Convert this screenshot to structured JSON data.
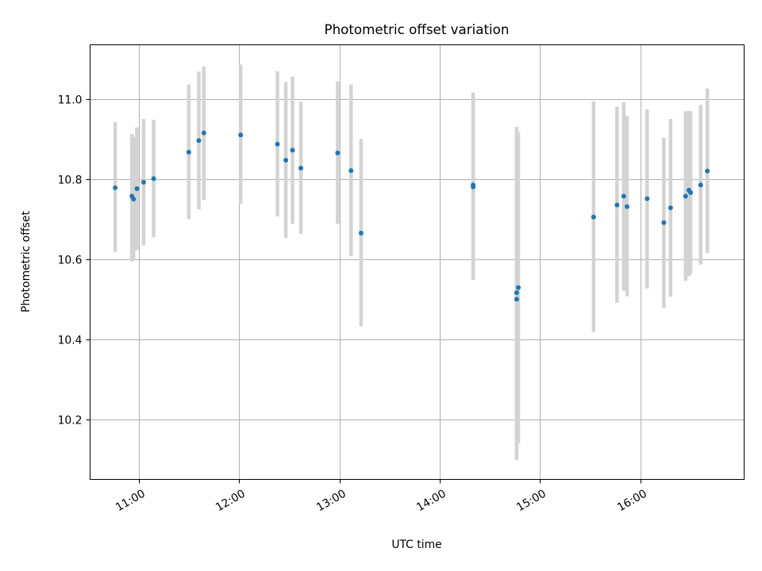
{
  "chart_data": {
    "type": "scatter",
    "title": "Photometric offset variation",
    "xlabel": "UTC time",
    "ylabel": "Photometric offset",
    "xlim": [
      "10:31",
      "17:02"
    ],
    "ylim": [
      10.05,
      11.135
    ],
    "grid": true,
    "x_ticks": [
      "11:00",
      "12:00",
      "13:00",
      "14:00",
      "15:00",
      "16:00"
    ],
    "y_ticks": [
      "10.2",
      "10.4",
      "10.6",
      "10.8",
      "11.0"
    ],
    "colors": {
      "point": "#1f77b4",
      "errorbar": "#d3d3d3",
      "grid": "#b0b0b0"
    },
    "series": [
      {
        "points": [
          {
            "x": "10:46",
            "y": 10.778,
            "ylo": 10.618,
            "yhi": 10.942
          },
          {
            "x": "10:56",
            "y": 10.757,
            "ylo": 10.594,
            "yhi": 10.912
          },
          {
            "x": "10:57",
            "y": 10.75,
            "ylo": 10.6,
            "yhi": 10.905
          },
          {
            "x": "10:59",
            "y": 10.776,
            "ylo": 10.622,
            "yhi": 10.929
          },
          {
            "x": "11:03",
            "y": 10.792,
            "ylo": 10.634,
            "yhi": 10.95
          },
          {
            "x": "11:09",
            "y": 10.801,
            "ylo": 10.654,
            "yhi": 10.948
          },
          {
            "x": "11:30",
            "y": 10.867,
            "ylo": 10.7,
            "yhi": 11.036
          },
          {
            "x": "11:36",
            "y": 10.896,
            "ylo": 10.724,
            "yhi": 11.068
          },
          {
            "x": "11:39",
            "y": 10.915,
            "ylo": 10.748,
            "yhi": 11.081
          },
          {
            "x": "12:01",
            "y": 10.91,
            "ylo": 10.738,
            "yhi": 11.086
          },
          {
            "x": "12:23",
            "y": 10.887,
            "ylo": 10.706,
            "yhi": 11.069
          },
          {
            "x": "12:28",
            "y": 10.847,
            "ylo": 10.653,
            "yhi": 11.042
          },
          {
            "x": "12:32",
            "y": 10.872,
            "ylo": 10.688,
            "yhi": 11.056
          },
          {
            "x": "12:37",
            "y": 10.827,
            "ylo": 10.663,
            "yhi": 10.993
          },
          {
            "x": "12:59",
            "y": 10.865,
            "ylo": 10.688,
            "yhi": 11.044
          },
          {
            "x": "13:07",
            "y": 10.821,
            "ylo": 10.607,
            "yhi": 11.036
          },
          {
            "x": "13:13",
            "y": 10.665,
            "ylo": 10.432,
            "yhi": 10.9
          },
          {
            "x": "14:20",
            "y": 10.78,
            "ylo": 10.548,
            "yhi": 11.016
          },
          {
            "x": "14:20",
            "y": 10.785,
            "ylo": 10.556,
            "yhi": 11.01
          },
          {
            "x": "14:46",
            "y": 10.5,
            "ylo": 10.098,
            "yhi": 10.929
          },
          {
            "x": "14:46",
            "y": 10.516,
            "ylo": 10.117,
            "yhi": 10.93
          },
          {
            "x": "14:47",
            "y": 10.529,
            "ylo": 10.14,
            "yhi": 10.916
          },
          {
            "x": "15:32",
            "y": 10.705,
            "ylo": 10.418,
            "yhi": 10.994
          },
          {
            "x": "15:46",
            "y": 10.735,
            "ylo": 10.491,
            "yhi": 10.98
          },
          {
            "x": "15:50",
            "y": 10.757,
            "ylo": 10.521,
            "yhi": 10.992
          },
          {
            "x": "15:52",
            "y": 10.731,
            "ylo": 10.507,
            "yhi": 10.957
          },
          {
            "x": "16:04",
            "y": 10.751,
            "ylo": 10.527,
            "yhi": 10.974
          },
          {
            "x": "16:14",
            "y": 10.691,
            "ylo": 10.478,
            "yhi": 10.903
          },
          {
            "x": "16:18",
            "y": 10.728,
            "ylo": 10.506,
            "yhi": 10.95
          },
          {
            "x": "16:27",
            "y": 10.757,
            "ylo": 10.546,
            "yhi": 10.969
          },
          {
            "x": "16:29",
            "y": 10.772,
            "ylo": 10.557,
            "yhi": 10.97
          },
          {
            "x": "16:30",
            "y": 10.766,
            "ylo": 10.564,
            "yhi": 10.97
          },
          {
            "x": "16:36",
            "y": 10.785,
            "ylo": 10.586,
            "yhi": 10.985
          },
          {
            "x": "16:40",
            "y": 10.82,
            "ylo": 10.615,
            "yhi": 11.026
          }
        ]
      }
    ]
  }
}
